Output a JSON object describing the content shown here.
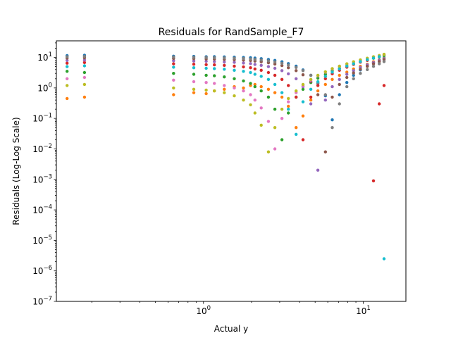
{
  "chart_data": {
    "type": "scatter",
    "title": "Residuals for RandSample_F7",
    "xlabel": "Actual y",
    "ylabel": "Residuals (Log-Log Scale)",
    "xscale": "log",
    "yscale": "log",
    "xlim": [
      0.12,
      18.5
    ],
    "ylim": [
      1e-07,
      35
    ],
    "x_ticks": [
      {
        "value": 1,
        "base": "10",
        "exp": "0"
      },
      {
        "value": 10,
        "base": "10",
        "exp": "1"
      }
    ],
    "y_ticks": [
      {
        "value": 1e-07,
        "base": "10",
        "exp": "−7"
      },
      {
        "value": 1e-06,
        "base": "10",
        "exp": "−6"
      },
      {
        "value": 1e-05,
        "base": "10",
        "exp": "−5"
      },
      {
        "value": 0.0001,
        "base": "10",
        "exp": "−4"
      },
      {
        "value": 0.001,
        "base": "10",
        "exp": "−3"
      },
      {
        "value": 0.01,
        "base": "10",
        "exp": "−2"
      },
      {
        "value": 0.1,
        "base": "10",
        "exp": "−1"
      },
      {
        "value": 1,
        "base": "10",
        "exp": "0"
      },
      {
        "value": 10,
        "base": "10",
        "exp": "1"
      }
    ],
    "grid": false,
    "legend": "none",
    "x_values": [
      0.14,
      0.18,
      0.65,
      0.87,
      1.04,
      1.17,
      1.35,
      1.56,
      1.78,
      1.97,
      2.1,
      2.3,
      2.55,
      2.8,
      3.1,
      3.4,
      3.8,
      4.2,
      4.7,
      5.2,
      5.8,
      6.4,
      7.1,
      7.9,
      8.7,
      9.6,
      10.6,
      11.6,
      12.6,
      13.5
    ],
    "series": [
      {
        "color": "#1f77b4",
        "y": [
          11.5,
          11.8,
          11.0,
          10.8,
          10.5,
          10.6,
          10.4,
          10.2,
          10.0,
          9.8,
          9.5,
          9.1,
          8.6,
          8.0,
          7.2,
          6.3,
          5.2,
          3.9,
          2.6,
          1.4,
          0.55,
          0.09,
          0.6,
          1.5,
          2.6,
          3.9,
          5.3,
          6.8,
          8.3,
          9.6
        ]
      },
      {
        "color": "#ff7f0e",
        "y": [
          0.45,
          0.5,
          0.6,
          0.7,
          0.65,
          0.8,
          0.9,
          1.1,
          1.0,
          1.2,
          1.3,
          1.1,
          0.9,
          0.7,
          0.5,
          0.25,
          0.05,
          0.12,
          0.4,
          0.8,
          1.3,
          1.9,
          2.6,
          3.3,
          4.2,
          5.1,
          6.0,
          7.2,
          8.1,
          9.2
        ]
      },
      {
        "color": "#2ca02c",
        "y": [
          3.5,
          3.2,
          3.0,
          2.8,
          2.6,
          2.5,
          2.3,
          2.0,
          1.7,
          1.4,
          1.1,
          0.8,
          0.5,
          0.2,
          0.02,
          0.15,
          0.5,
          0.9,
          1.5,
          2.1,
          2.8,
          3.6,
          4.4,
          5.3,
          6.2,
          7.2,
          8.3,
          9.4,
          10.4,
          11.4
        ]
      },
      {
        "color": "#d62728",
        "y": [
          6.5,
          6.8,
          6.2,
          6.0,
          5.8,
          5.7,
          5.5,
          5.2,
          4.9,
          4.6,
          4.2,
          3.8,
          3.2,
          2.6,
          1.9,
          1.2,
          0.5,
          0.02,
          0.5,
          1.2,
          2.0,
          2.9,
          3.8,
          4.8,
          5.9,
          7.0,
          8.0,
          0.0009,
          0.3,
          1.2
        ]
      },
      {
        "color": "#9467bd",
        "y": [
          8.0,
          8.2,
          7.8,
          7.6,
          7.5,
          7.3,
          7.1,
          6.9,
          6.6,
          6.3,
          5.9,
          5.5,
          5.0,
          4.4,
          3.7,
          2.9,
          2.0,
          1.1,
          0.3,
          0.002,
          0.4,
          1.1,
          1.9,
          2.8,
          3.7,
          4.7,
          5.7,
          6.8,
          7.9,
          9.0
        ]
      },
      {
        "color": "#8c564b",
        "y": [
          9.5,
          9.7,
          9.3,
          9.1,
          8.9,
          8.8,
          8.6,
          8.4,
          8.2,
          7.9,
          7.6,
          7.2,
          6.7,
          6.1,
          5.4,
          4.6,
          3.7,
          2.7,
          1.6,
          0.6,
          0.008,
          0.5,
          1.3,
          2.2,
          3.1,
          4.1,
          5.1,
          6.2,
          7.3,
          8.4
        ]
      },
      {
        "color": "#e377c2",
        "y": [
          2.0,
          2.2,
          1.8,
          1.6,
          1.5,
          1.4,
          1.2,
          1.0,
          0.8,
          0.6,
          0.4,
          0.22,
          0.08,
          0.01,
          0.1,
          0.35,
          0.7,
          1.2,
          1.8,
          2.5,
          3.3,
          4.2,
          5.1,
          6.1,
          7.1,
          8.2,
          9.3,
          10.4,
          11.5,
          12.5
        ]
      },
      {
        "color": "#7f7f7f",
        "y": [
          10.5,
          10.8,
          10.3,
          10.1,
          9.9,
          9.8,
          9.6,
          9.4,
          9.2,
          8.9,
          8.6,
          8.2,
          7.7,
          7.1,
          6.4,
          5.6,
          4.7,
          3.7,
          2.6,
          1.5,
          0.6,
          0.05,
          0.3,
          1.1,
          2.0,
          3.0,
          4.0,
          5.1,
          6.2,
          7.3
        ]
      },
      {
        "color": "#bcbd22",
        "y": [
          1.2,
          1.3,
          1.0,
          0.9,
          0.85,
          0.8,
          0.7,
          0.55,
          0.4,
          0.28,
          0.15,
          0.06,
          0.008,
          0.05,
          0.2,
          0.45,
          0.8,
          1.3,
          1.9,
          2.6,
          3.4,
          4.3,
          5.2,
          6.2,
          7.2,
          8.3,
          9.4,
          10.5,
          11.6,
          12.7
        ]
      },
      {
        "color": "#17becf",
        "y": [
          5.0,
          5.3,
          4.8,
          4.6,
          4.4,
          4.3,
          4.1,
          3.8,
          3.5,
          3.2,
          2.8,
          2.4,
          1.9,
          1.3,
          0.7,
          0.2,
          0.03,
          0.35,
          0.9,
          1.6,
          2.4,
          3.3,
          4.2,
          5.2,
          6.2,
          7.3,
          8.4,
          9.5,
          10.6,
          2.5e-06
        ]
      }
    ]
  }
}
